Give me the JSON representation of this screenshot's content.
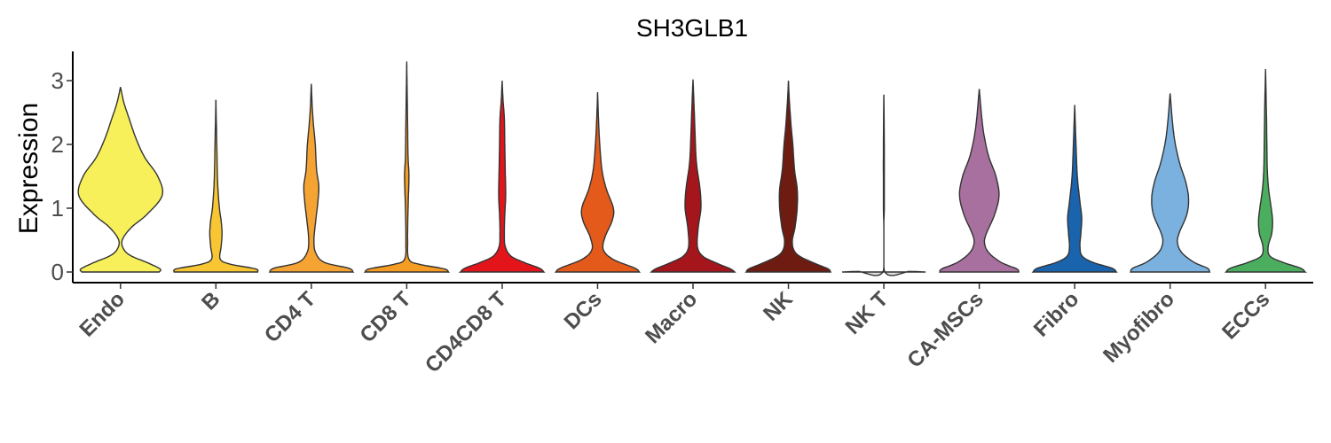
{
  "chart_data": {
    "type": "violin",
    "title": "SH3GLB1",
    "xlabel": "",
    "ylabel": "Expression",
    "ylim": [
      -0.15,
      3.35
    ],
    "yticks": [
      0,
      1,
      2,
      3
    ],
    "grid": false,
    "legend": "none",
    "categories": [
      "Endo",
      "B",
      "CD4 T",
      "CD8 T",
      "CD4CD8 T",
      "DCs",
      "Macro",
      "NK",
      "NK T",
      "CA-MSCs",
      "Fibro",
      "Myofibro",
      "ECCs"
    ],
    "colors": [
      "#F7F05A",
      "#F8C632",
      "#F5A433",
      "#F59C22",
      "#E3151B",
      "#E45A1B",
      "#A5151C",
      "#6E1C12",
      "#E0E0E0",
      "#A8709E",
      "#1A63AD",
      "#7AB1DE",
      "#4BAE5E"
    ],
    "series": [
      {
        "category": "Endo",
        "max": 2.9,
        "profile": [
          [
            0,
            0.88
          ],
          [
            0.05,
            0.9
          ],
          [
            0.15,
            0.6
          ],
          [
            0.25,
            0.25
          ],
          [
            0.35,
            0.08
          ],
          [
            0.5,
            0.04
          ],
          [
            0.7,
            0.25
          ],
          [
            0.9,
            0.6
          ],
          [
            1.2,
            0.95
          ],
          [
            1.5,
            0.85
          ],
          [
            1.8,
            0.55
          ],
          [
            2.1,
            0.35
          ],
          [
            2.4,
            0.2
          ],
          [
            2.65,
            0.08
          ],
          [
            2.9,
            0
          ]
        ]
      },
      {
        "category": "B",
        "max": 2.7,
        "profile": [
          [
            0,
            0.95
          ],
          [
            0.05,
            0.9
          ],
          [
            0.12,
            0.35
          ],
          [
            0.2,
            0.1
          ],
          [
            0.4,
            0.12
          ],
          [
            0.6,
            0.14
          ],
          [
            0.8,
            0.12
          ],
          [
            1.0,
            0.08
          ],
          [
            1.4,
            0.04
          ],
          [
            2.0,
            0.02
          ],
          [
            2.7,
            0
          ]
        ]
      },
      {
        "category": "CD4 T",
        "max": 2.95,
        "profile": [
          [
            0,
            0.95
          ],
          [
            0.06,
            0.85
          ],
          [
            0.15,
            0.3
          ],
          [
            0.3,
            0.1
          ],
          [
            0.5,
            0.06
          ],
          [
            0.8,
            0.1
          ],
          [
            1.1,
            0.15
          ],
          [
            1.35,
            0.17
          ],
          [
            1.6,
            0.12
          ],
          [
            2.0,
            0.09
          ],
          [
            2.3,
            0.05
          ],
          [
            2.6,
            0.02
          ],
          [
            2.95,
            0
          ]
        ]
      },
      {
        "category": "CD8 T",
        "max": 3.3,
        "profile": [
          [
            0,
            0.95
          ],
          [
            0.05,
            0.85
          ],
          [
            0.12,
            0.3
          ],
          [
            0.2,
            0.05
          ],
          [
            0.5,
            0.02
          ],
          [
            1.0,
            0.03
          ],
          [
            1.5,
            0.05
          ],
          [
            1.8,
            0.03
          ],
          [
            2.3,
            0.02
          ],
          [
            2.8,
            0.01
          ],
          [
            3.3,
            0
          ]
        ]
      },
      {
        "category": "CD4CD8 T",
        "max": 3.0,
        "profile": [
          [
            0,
            0.95
          ],
          [
            0.06,
            0.85
          ],
          [
            0.15,
            0.5
          ],
          [
            0.25,
            0.2
          ],
          [
            0.4,
            0.07
          ],
          [
            0.6,
            0.05
          ],
          [
            0.9,
            0.06
          ],
          [
            1.2,
            0.08
          ],
          [
            1.6,
            0.07
          ],
          [
            2.0,
            0.06
          ],
          [
            2.4,
            0.05
          ],
          [
            2.7,
            0.02
          ],
          [
            3.0,
            0
          ]
        ]
      },
      {
        "category": "DCs",
        "max": 2.82,
        "profile": [
          [
            0,
            0.95
          ],
          [
            0.06,
            0.85
          ],
          [
            0.2,
            0.35
          ],
          [
            0.35,
            0.13
          ],
          [
            0.55,
            0.17
          ],
          [
            0.8,
            0.33
          ],
          [
            1.0,
            0.36
          ],
          [
            1.3,
            0.2
          ],
          [
            1.6,
            0.1
          ],
          [
            2.0,
            0.05
          ],
          [
            2.4,
            0.02
          ],
          [
            2.82,
            0
          ]
        ]
      },
      {
        "category": "Macro",
        "max": 3.02,
        "profile": [
          [
            0,
            0.95
          ],
          [
            0.05,
            0.85
          ],
          [
            0.15,
            0.5
          ],
          [
            0.25,
            0.22
          ],
          [
            0.4,
            0.1
          ],
          [
            0.7,
            0.12
          ],
          [
            1.0,
            0.18
          ],
          [
            1.3,
            0.16
          ],
          [
            1.7,
            0.08
          ],
          [
            2.1,
            0.05
          ],
          [
            2.5,
            0.03
          ],
          [
            3.02,
            0
          ]
        ]
      },
      {
        "category": "NK",
        "max": 3.0,
        "profile": [
          [
            0,
            0.96
          ],
          [
            0.05,
            0.9
          ],
          [
            0.15,
            0.55
          ],
          [
            0.25,
            0.25
          ],
          [
            0.35,
            0.12
          ],
          [
            0.5,
            0.09
          ],
          [
            0.7,
            0.15
          ],
          [
            1.0,
            0.2
          ],
          [
            1.3,
            0.2
          ],
          [
            1.6,
            0.14
          ],
          [
            2.0,
            0.1
          ],
          [
            2.3,
            0.06
          ],
          [
            2.7,
            0.02
          ],
          [
            3.0,
            0
          ]
        ]
      },
      {
        "category": "NK T",
        "max": 2.78,
        "profile": [
          [
            0,
            0.95
          ],
          [
            0.01,
            0.6
          ],
          [
            0.02,
            0.01
          ],
          [
            1.0,
            0.01
          ],
          [
            2.0,
            0.01
          ],
          [
            2.78,
            0
          ]
        ]
      },
      {
        "category": "CA-MSCs",
        "max": 2.87,
        "profile": [
          [
            0,
            0.9
          ],
          [
            0.05,
            0.85
          ],
          [
            0.15,
            0.5
          ],
          [
            0.3,
            0.22
          ],
          [
            0.45,
            0.12
          ],
          [
            0.6,
            0.16
          ],
          [
            0.9,
            0.35
          ],
          [
            1.2,
            0.45
          ],
          [
            1.5,
            0.38
          ],
          [
            1.8,
            0.22
          ],
          [
            2.1,
            0.12
          ],
          [
            2.4,
            0.06
          ],
          [
            2.87,
            0
          ]
        ]
      },
      {
        "category": "Fibro",
        "max": 2.62,
        "profile": [
          [
            0,
            0.95
          ],
          [
            0.06,
            0.85
          ],
          [
            0.15,
            0.42
          ],
          [
            0.25,
            0.17
          ],
          [
            0.4,
            0.12
          ],
          [
            0.6,
            0.14
          ],
          [
            0.85,
            0.16
          ],
          [
            1.1,
            0.12
          ],
          [
            1.5,
            0.06
          ],
          [
            2.0,
            0.03
          ],
          [
            2.62,
            0
          ]
        ]
      },
      {
        "category": "Myofibro",
        "max": 2.8,
        "profile": [
          [
            0,
            0.9
          ],
          [
            0.06,
            0.85
          ],
          [
            0.15,
            0.55
          ],
          [
            0.3,
            0.27
          ],
          [
            0.45,
            0.17
          ],
          [
            0.6,
            0.2
          ],
          [
            0.9,
            0.38
          ],
          [
            1.15,
            0.42
          ],
          [
            1.4,
            0.36
          ],
          [
            1.7,
            0.22
          ],
          [
            2.0,
            0.12
          ],
          [
            2.3,
            0.06
          ],
          [
            2.8,
            0
          ]
        ]
      },
      {
        "category": "ECCs",
        "max": 3.18,
        "profile": [
          [
            0,
            0.9
          ],
          [
            0.06,
            0.8
          ],
          [
            0.15,
            0.4
          ],
          [
            0.25,
            0.1
          ],
          [
            0.4,
            0.06
          ],
          [
            0.6,
            0.14
          ],
          [
            0.8,
            0.16
          ],
          [
            1.0,
            0.13
          ],
          [
            1.3,
            0.07
          ],
          [
            1.6,
            0.04
          ],
          [
            2.0,
            0.03
          ],
          [
            2.5,
            0.02
          ],
          [
            3.18,
            0
          ]
        ]
      }
    ]
  }
}
